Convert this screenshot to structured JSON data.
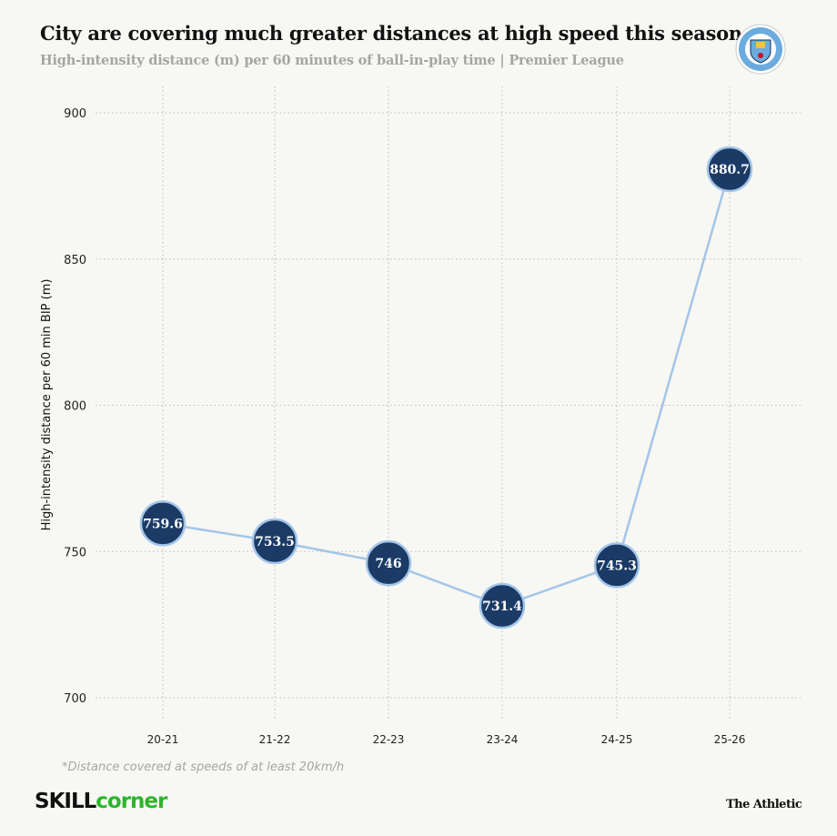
{
  "header": {
    "title": "City are covering much greater distances at high speed this season",
    "subtitle": "High-intensity distance (m) per 60 minutes of ball-in-play time | Premier League",
    "logo_text": "MANCHESTER CITY"
  },
  "footer": {
    "note": "*Distance covered at speeds of at least 20km/h",
    "brand_left_a": "SKILL",
    "brand_left_b": "corner",
    "brand_right": "The Athletic"
  },
  "colors": {
    "background": "#f7f7f3",
    "line": "#a3c6e8",
    "marker_fill": "#1b3a66",
    "marker_stroke": "#a3c6e8",
    "skillcorner_green": "#2db52d"
  },
  "chart_data": {
    "type": "line",
    "title": "City are covering much greater distances at high speed this season",
    "subtitle": "High-intensity distance (m) per 60 minutes of ball-in-play time | Premier League",
    "xlabel": "",
    "ylabel": "High-intensity distance per 60 min BIP (m)",
    "categories": [
      "20-21",
      "21-22",
      "22-23",
      "23-24",
      "24-25",
      "25-26"
    ],
    "values": [
      759.6,
      753.5,
      746,
      731.4,
      745.3,
      880.7
    ],
    "data_labels": [
      "759.6",
      "753.5",
      "746",
      "731.4",
      "745.3",
      "880.7"
    ],
    "ylim": [
      700,
      900
    ],
    "yticks": [
      700,
      750,
      800,
      850,
      900
    ],
    "grid": true
  }
}
